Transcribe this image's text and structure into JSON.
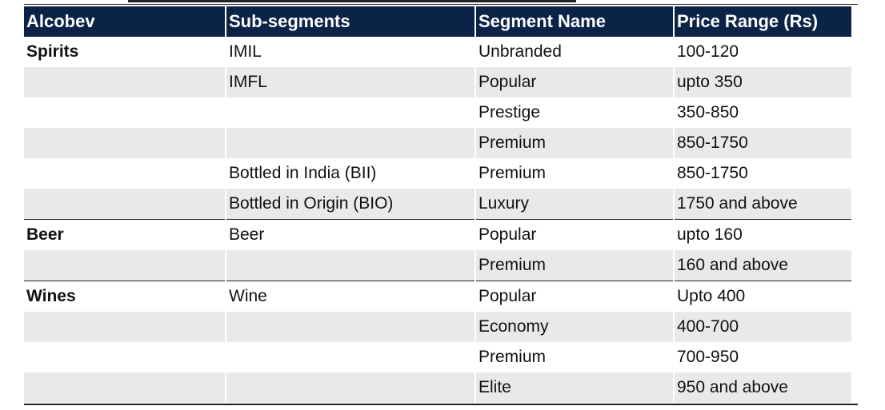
{
  "columns": [
    "Alcobev",
    "Sub-segments",
    "Segment Name",
    "Price Range (Rs)"
  ],
  "rows": [
    {
      "category": "Spirits",
      "sub": "IMIL",
      "segment": "Unbranded",
      "price": "100-120"
    },
    {
      "category": "",
      "sub": "IMFL",
      "segment": "Popular",
      "price": "upto 350"
    },
    {
      "category": "",
      "sub": "",
      "segment": "Prestige",
      "price": "350-850"
    },
    {
      "category": "",
      "sub": "",
      "segment": "Premium",
      "price": "850-1750"
    },
    {
      "category": "",
      "sub": "Bottled in India (BII)",
      "segment": "Premium",
      "price": "850-1750"
    },
    {
      "category": "",
      "sub": "Bottled in Origin (BIO)",
      "segment": "Luxury",
      "price": "1750 and above"
    },
    {
      "category": "Beer",
      "sub": "Beer",
      "segment": "Popular",
      "price": "upto 160"
    },
    {
      "category": "",
      "sub": "",
      "segment": "Premium",
      "price": "160 and above"
    },
    {
      "category": "Wines",
      "sub": "Wine",
      "segment": "Popular",
      "price": "Upto 400"
    },
    {
      "category": "",
      "sub": "",
      "segment": "Economy",
      "price": "400-700"
    },
    {
      "category": "",
      "sub": "",
      "segment": "Premium",
      "price": "700-950"
    },
    {
      "category": "",
      "sub": "",
      "segment": "Elite",
      "price": "950 and above"
    }
  ]
}
